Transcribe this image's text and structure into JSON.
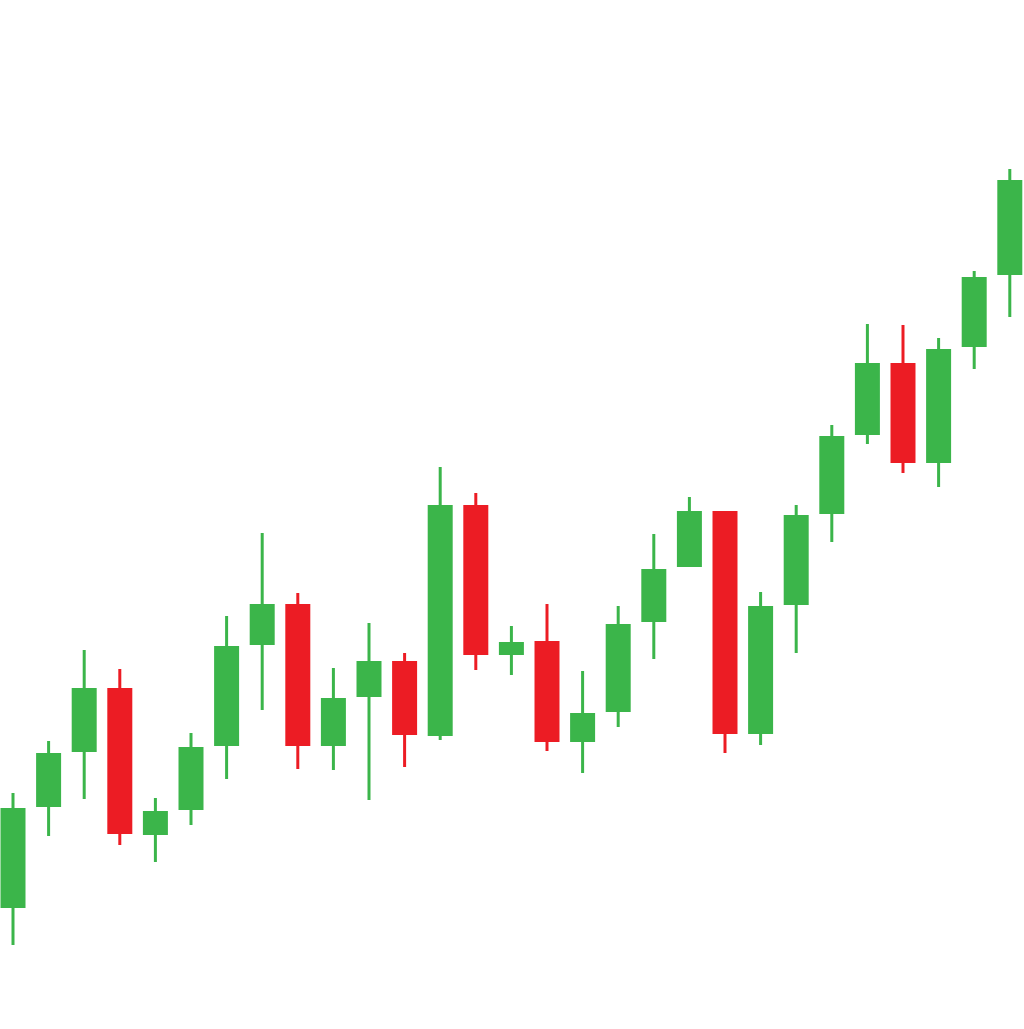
{
  "chart_data": {
    "type": "candlestick",
    "up_color": "#3bb54a",
    "down_color": "#ec1c24",
    "ylim": [
      0,
      1024
    ],
    "open": [
      116,
      217,
      272,
      336,
      189,
      214,
      278,
      379,
      420,
      278,
      327,
      363,
      288,
      519,
      369,
      383,
      282,
      312,
      402,
      457,
      513,
      290,
      419,
      510,
      589,
      661,
      561,
      677,
      749
    ],
    "high": [
      231,
      283,
      374,
      355,
      226,
      291,
      408,
      491,
      431,
      356,
      401,
      371,
      557,
      531,
      398,
      420,
      353,
      418,
      490,
      527,
      513,
      432,
      519,
      599,
      700,
      699,
      686,
      753,
      855
    ],
    "low": [
      79,
      188,
      225,
      179,
      162,
      199,
      245,
      314,
      255,
      254,
      224,
      257,
      284,
      354,
      349,
      273,
      251,
      297,
      365,
      457,
      271,
      279,
      371,
      482,
      580,
      551,
      537,
      655,
      707
    ],
    "close": [
      216,
      271,
      336,
      190,
      213,
      277,
      378,
      420,
      278,
      326,
      363,
      289,
      519,
      369,
      382,
      282,
      311,
      400,
      455,
      513,
      290,
      418,
      509,
      588,
      661,
      561,
      675,
      747,
      844
    ]
  }
}
